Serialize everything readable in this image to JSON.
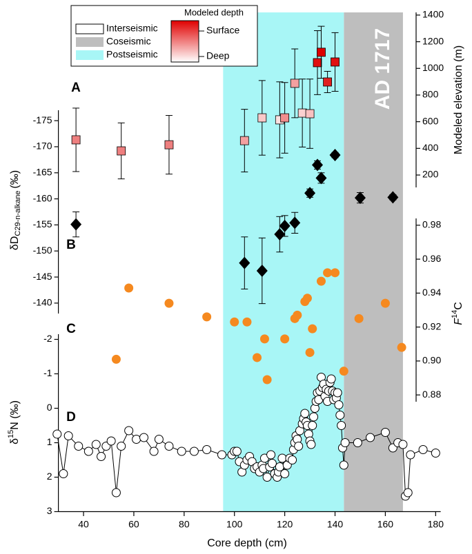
{
  "chart_data": [
    {
      "type": "scatter",
      "panel": "A",
      "y_label": "Modeled elevation (m)",
      "x": [
        37,
        55,
        74,
        104,
        111,
        118,
        120,
        124,
        127,
        130,
        133,
        134.5,
        137,
        140
      ],
      "values": [
        464,
        381,
        427,
        458,
        629,
        614,
        629,
        888,
        665,
        660,
        1043,
        1121,
        898,
        1048
      ],
      "errors": [
        238,
        210,
        220,
        235,
        280,
        285,
        265,
        258,
        255,
        260,
        240,
        195,
        80,
        220
      ],
      "colors": [
        "#ee7f7f",
        "#ee7f7f",
        "#ee7f7f",
        "#f4a0a0",
        "#f9c8c8",
        "#fde0e0",
        "#f28d8d",
        "#f4a0a0",
        "#fbd0d0",
        "#f9c0c0",
        "#e01010",
        "#dd0000",
        "#e02020",
        "#e01010"
      ],
      "ylim": [
        107,
        1420
      ],
      "yticks": [
        200,
        400,
        600,
        800,
        1000,
        1200,
        1400
      ]
    },
    {
      "type": "scatter",
      "panel": "B",
      "y_label": "δD",
      "y_label_sub": "C29-n-alkane",
      "y_label_unit": "(‰)",
      "x": [
        37,
        104,
        111,
        118,
        120,
        124,
        130,
        133,
        134.5,
        140,
        150,
        163
      ],
      "values": [
        -155.1,
        -147.7,
        -146.2,
        -153.2,
        -154.8,
        -155.4,
        -161.1,
        -166.5,
        -164,
        -168.4,
        -160.2,
        -160.3
      ],
      "errors": [
        2.4,
        5,
        6.3,
        3.4,
        2,
        2,
        0.8,
        0.8,
        1,
        0.5,
        1,
        0.5
      ],
      "color": "#000000",
      "y_inverted": true,
      "ylim": [
        -177,
        -138
      ],
      "yticks": [
        -175,
        -170,
        -165,
        -160,
        -155,
        -150,
        -145,
        -140
      ]
    },
    {
      "type": "scatter",
      "panel": "C",
      "y_label": "F",
      "y_label_sup": "14",
      "y_label_end": "C",
      "x": [
        53,
        58,
        74,
        89,
        100,
        105,
        109,
        112,
        113,
        120,
        124,
        125,
        128,
        129,
        130,
        131,
        134.5,
        137,
        140,
        143.5,
        149.5,
        160,
        166.5
      ],
      "values": [
        0.901,
        0.943,
        0.934,
        0.926,
        0.923,
        0.923,
        0.902,
        0.913,
        0.889,
        0.913,
        0.925,
        0.927,
        0.935,
        0.937,
        0.905,
        0.919,
        0.947,
        0.952,
        0.952,
        0.894,
        0.925,
        0.934,
        0.908
      ],
      "color": "#f5891f",
      "ylim": [
        0.876,
        0.984
      ],
      "yticks": [
        0.88,
        {
          "value": 0.9,
          "label": "0.90"
        },
        0.92,
        0.94,
        0.96,
        0.98
      ]
    },
    {
      "type": "line",
      "panel": "D",
      "y_label": "δ",
      "y_label_sup": "15",
      "y_label_end": "N (‰)",
      "x_label": "Core depth (cm)",
      "x": [
        29.5,
        32,
        34,
        38,
        42,
        45,
        47,
        49,
        51,
        53,
        55,
        58,
        61,
        64,
        68,
        70,
        74,
        79,
        84,
        89,
        95,
        99,
        100,
        101,
        102,
        103,
        104,
        105,
        106,
        107,
        108,
        109,
        110,
        111,
        111.5,
        112,
        113,
        114,
        114.5,
        115,
        116,
        117,
        117.5,
        118,
        119,
        120,
        121,
        122,
        123,
        123.5,
        124,
        124.5,
        125,
        125.5,
        126,
        127,
        127.5,
        128,
        128.5,
        129,
        129.5,
        130,
        130.5,
        131,
        131.5,
        132,
        132.5,
        133,
        133.5,
        134,
        134.5,
        135,
        135.5,
        136,
        136.5,
        137,
        137.5,
        138,
        138.5,
        139,
        139.5,
        140,
        140.5,
        141,
        141.5,
        142,
        142.5,
        143,
        143.5,
        144,
        149,
        154,
        160,
        163,
        165,
        167,
        168,
        169,
        170,
        175,
        180
      ],
      "values": [
        0.75,
        1.9,
        0.8,
        1.1,
        1.25,
        1.05,
        1.4,
        1.1,
        0.95,
        2.45,
        1.1,
        0.65,
        0.9,
        0.85,
        1.25,
        0.9,
        1.1,
        1.25,
        1.25,
        1.2,
        1.35,
        1.35,
        1.25,
        1.25,
        1.55,
        1.85,
        1.65,
        1.5,
        1.4,
        1.55,
        1.75,
        1.7,
        1.85,
        1.65,
        1.75,
        1.45,
        2.0,
        1.7,
        1.35,
        1.6,
        1.9,
        2.0,
        1.85,
        1.7,
        1.45,
        1.9,
        1.65,
        1.45,
        1.5,
        1.2,
        1.0,
        0.8,
        0.9,
        1.1,
        0.65,
        0.45,
        0.3,
        0.15,
        0.4,
        0.5,
        0.75,
        0.95,
        1.05,
        0.5,
        0.25,
        0.0,
        -0.2,
        -0.45,
        -0.25,
        -0.5,
        -0.9,
        -0.6,
        -0.7,
        -0.35,
        -0.55,
        -0.2,
        -0.5,
        -0.75,
        -0.85,
        -0.5,
        -0.25,
        -0.45,
        -0.3,
        -0.45,
        -0.1,
        0.2,
        0.5,
        1.15,
        1.65,
        1.0,
        1.0,
        0.85,
        0.7,
        1.15,
        1.0,
        1.05,
        2.55,
        2.45,
        1.35,
        1.2,
        1.3
      ],
      "color": "#000000",
      "y_inverted": true,
      "ylim": [
        -2.15,
        3
      ],
      "yticks": [
        -2,
        -1,
        0,
        1,
        2,
        3
      ],
      "xlim": [
        30,
        182
      ],
      "xticks": [
        40,
        60,
        80,
        100,
        120,
        140,
        160,
        180
      ]
    }
  ],
  "legend": {
    "items": [
      {
        "name": "Interseismic",
        "color": "#ffffff"
      },
      {
        "name": "Coseismic",
        "color": "#bebebe",
        "span": [
          143.5,
          167
        ]
      },
      {
        "name": "Postseismic",
        "color": "#a8f6f6",
        "span": [
          95.5,
          143.5
        ]
      }
    ],
    "gradient_title": "Modeled depth",
    "gradient_labels": [
      "Surface",
      "Deep"
    ],
    "gradient_colors": [
      "#e00000",
      "#ffffff"
    ]
  },
  "annotation": "AD 1717"
}
